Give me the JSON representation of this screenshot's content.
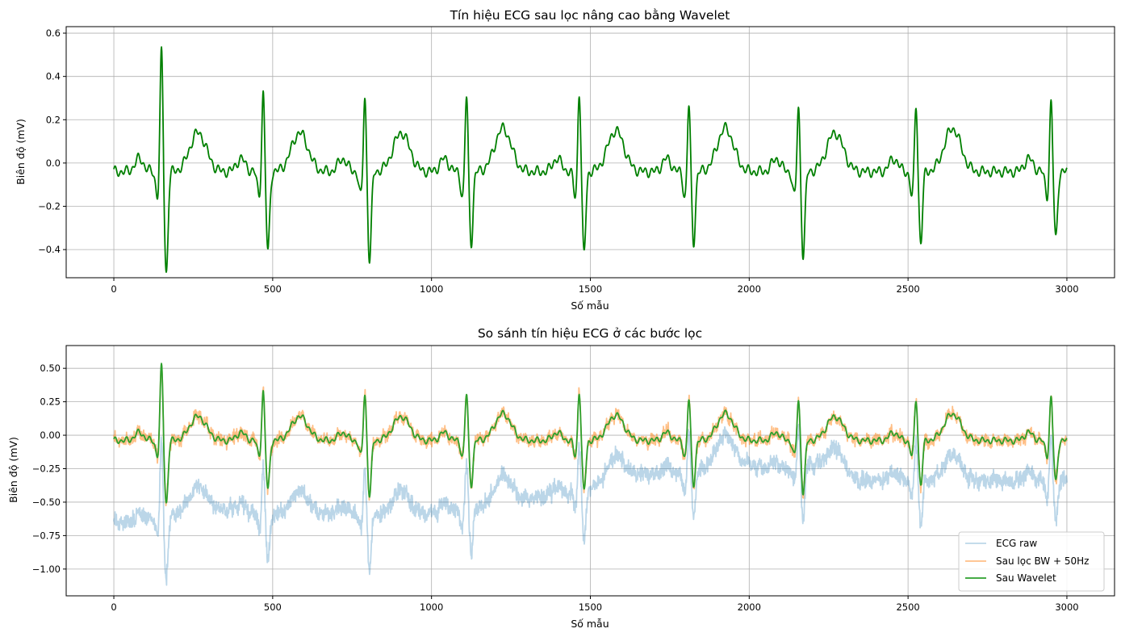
{
  "chart_data": [
    {
      "type": "line",
      "title": "Tín hiệu ECG sau lọc nâng cao bằng Wavelet",
      "xlabel": "Số mẫu",
      "ylabel": "Biên độ (mV)",
      "xlim": [
        -150,
        3150
      ],
      "ylim": [
        -0.53,
        0.63
      ],
      "xticks": [
        0,
        500,
        1000,
        1500,
        2000,
        2500,
        3000
      ],
      "yticks": [
        -0.4,
        -0.2,
        0.0,
        0.2,
        0.4,
        0.6
      ],
      "ytick_labels": [
        "−0.4",
        "−0.2",
        "0.0",
        "0.2",
        "0.4",
        "0.6"
      ],
      "grid": true,
      "legend": "none",
      "beats": [
        {
          "x": 150,
          "r": 0.58,
          "s": -0.47,
          "t": 0.18
        },
        {
          "x": 470,
          "r": 0.39,
          "s": -0.37,
          "t": 0.18
        },
        {
          "x": 790,
          "r": 0.37,
          "s": -0.41,
          "t": 0.18
        },
        {
          "x": 1110,
          "r": 0.37,
          "s": -0.33,
          "t": 0.2
        },
        {
          "x": 1465,
          "r": 0.39,
          "s": -0.38,
          "t": 0.19
        },
        {
          "x": 1810,
          "r": 0.33,
          "s": -0.33,
          "t": 0.2
        },
        {
          "x": 2155,
          "r": 0.32,
          "s": -0.39,
          "t": 0.18
        },
        {
          "x": 2525,
          "r": 0.33,
          "s": -0.33,
          "t": 0.2
        },
        {
          "x": 2950,
          "r": 0.34,
          "s": -0.31,
          "t": 0.0
        }
      ],
      "series": [
        {
          "name": "",
          "color": "#008000",
          "source": "wavelet",
          "opacity": 1,
          "width": 1.8
        }
      ]
    },
    {
      "type": "line",
      "title": "So sánh tín hiệu ECG ở các bước lọc",
      "xlabel": "Số mẫu",
      "ylabel": "Biên độ (mV)",
      "xlim": [
        -150,
        3150
      ],
      "ylim": [
        -1.2,
        0.67
      ],
      "xticks": [
        0,
        500,
        1000,
        1500,
        2000,
        2500,
        3000
      ],
      "yticks": [
        -1.0,
        -0.75,
        -0.5,
        -0.25,
        0.0,
        0.25,
        0.5
      ],
      "ytick_labels": [
        "−1.00",
        "−0.75",
        "−0.50",
        "−0.25",
        "0.00",
        "0.25",
        "0.50"
      ],
      "grid": true,
      "legend": "lower-right",
      "baseline_wander": [
        [
          0,
          -0.62
        ],
        [
          100,
          -0.6
        ],
        [
          300,
          -0.5
        ],
        [
          480,
          -0.55
        ],
        [
          620,
          -0.55
        ],
        [
          800,
          -0.55
        ],
        [
          960,
          -0.55
        ],
        [
          1100,
          -0.52
        ],
        [
          1250,
          -0.45
        ],
        [
          1470,
          -0.38
        ],
        [
          1650,
          -0.25
        ],
        [
          1810,
          -0.25
        ],
        [
          1920,
          -0.15
        ],
        [
          2100,
          -0.22
        ],
        [
          2200,
          -0.18
        ],
        [
          2350,
          -0.3
        ],
        [
          2600,
          -0.3
        ],
        [
          2800,
          -0.3
        ],
        [
          3000,
          -0.3
        ]
      ],
      "series": [
        {
          "name": "ECG raw",
          "color": "#1f77b4",
          "source": "raw",
          "opacity": 0.3,
          "width": 1.8
        },
        {
          "name": "Sau lọc BW + 50Hz",
          "color": "#ff7f0e",
          "source": "bw",
          "opacity": 0.5,
          "width": 1.8
        },
        {
          "name": "Sau Wavelet",
          "color": "#2ca02c",
          "source": "wavelet",
          "opacity": 1,
          "width": 1.8
        }
      ]
    }
  ]
}
